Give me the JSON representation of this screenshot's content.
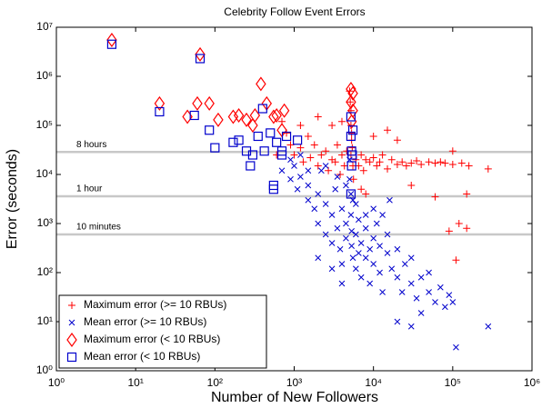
{
  "chart_data": {
    "type": "scatter",
    "title": "Celebrity Follow Event Errors",
    "xlabel": "Number of New Followers",
    "ylabel": "Error (seconds)",
    "xscale": "log",
    "yscale": "log",
    "xlim": [
      1,
      1000000
    ],
    "ylim": [
      1,
      10000000
    ],
    "xticks": [
      {
        "value": 1,
        "label": "10⁰"
      },
      {
        "value": 10,
        "label": "10¹"
      },
      {
        "value": 100,
        "label": "10²"
      },
      {
        "value": 1000,
        "label": "10³"
      },
      {
        "value": 10000,
        "label": "10⁴"
      },
      {
        "value": 100000,
        "label": "10⁵"
      },
      {
        "value": 1000000,
        "label": "10⁶"
      }
    ],
    "yticks": [
      {
        "value": 1,
        "label": "10⁰"
      },
      {
        "value": 10,
        "label": "10¹"
      },
      {
        "value": 100,
        "label": "10²"
      },
      {
        "value": 1000,
        "label": "10³"
      },
      {
        "value": 10000,
        "label": "10⁴"
      },
      {
        "value": 100000,
        "label": "10⁵"
      },
      {
        "value": 1000000,
        "label": "10⁶"
      },
      {
        "value": 10000000,
        "label": "10⁷"
      }
    ],
    "reference_lines": [
      {
        "value": 28800,
        "label": "8 hours"
      },
      {
        "value": 3600,
        "label": "1 hour"
      },
      {
        "value": 600,
        "label": "10 minutes"
      }
    ],
    "reference_color": "#c8c8c8",
    "legend": "lower left",
    "series": [
      {
        "name": "Maximum error (>= 10 RBUs)",
        "color": "#ff0000",
        "marker": "plus",
        "x": [
          700,
          900,
          1000,
          1200,
          1300,
          1500,
          1600,
          1800,
          2000,
          2200,
          2500,
          2700,
          3000,
          3300,
          3500,
          3800,
          4000,
          4300,
          4600,
          5000,
          5100,
          5200,
          5200,
          5300,
          5300,
          5400,
          5200,
          5500,
          5600,
          6000,
          6500,
          7000,
          7500,
          8000,
          9000,
          10000,
          11000,
          12000,
          13000,
          15000,
          17000,
          20000,
          23000,
          26000,
          30000,
          35000,
          40000,
          50000,
          60000,
          70000,
          80000,
          100000,
          130000,
          160000,
          280000,
          100000,
          150000,
          120000,
          90000,
          110000,
          150000,
          60000,
          30000,
          20000,
          15000,
          600,
          2000,
          3000,
          1200,
          800,
          4000,
          10000,
          7000,
          8000
        ],
        "values": [
          120000,
          40000,
          25000,
          35000,
          18000,
          60000,
          22000,
          40000,
          15000,
          25000,
          30000,
          12000,
          20000,
          18000,
          40000,
          10000,
          25000,
          15000,
          30000,
          500000,
          300000,
          200000,
          100000,
          70000,
          50000,
          35000,
          25000,
          15000,
          8000,
          20000,
          15000,
          25000,
          12000,
          20000,
          18000,
          22000,
          15000,
          18000,
          25000,
          13000,
          20000,
          16000,
          18000,
          15000,
          17000,
          19000,
          16000,
          18000,
          17000,
          18000,
          17000,
          16000,
          17000,
          15000,
          13000,
          30000,
          4000,
          1000,
          700,
          180,
          800,
          3500,
          6000,
          50000,
          80000,
          25000,
          150000,
          100000,
          100000,
          70000,
          120000,
          60000,
          5000,
          4000
        ]
      },
      {
        "name": "Mean error (>= 10 RBUs)",
        "color": "#0000cc",
        "marker": "x",
        "x": [
          700,
          900,
          1000,
          1100,
          1200,
          1500,
          1500,
          1800,
          2000,
          2000,
          2200,
          2500,
          2500,
          3000,
          3000,
          3300,
          3500,
          3800,
          4000,
          4000,
          4500,
          4500,
          5000,
          5000,
          5200,
          5200,
          5300,
          5300,
          5500,
          5500,
          6000,
          6000,
          6500,
          6500,
          7000,
          7000,
          8000,
          8000,
          9000,
          9000,
          10000,
          10000,
          11000,
          12000,
          12000,
          13000,
          15000,
          15000,
          17000,
          20000,
          20000,
          23000,
          25000,
          30000,
          30000,
          35000,
          40000,
          40000,
          50000,
          50000,
          60000,
          70000,
          80000,
          90000,
          100000,
          110000,
          280000,
          20000,
          30000,
          10000,
          13000,
          1500,
          900,
          1200,
          2500,
          3500,
          4500,
          8000,
          6000,
          16000,
          2000,
          3000,
          4000
        ],
        "values": [
          12000,
          8000,
          15000,
          5000,
          9000,
          3000,
          6000,
          2000,
          4000,
          1000,
          12000,
          2500,
          600,
          1500,
          400,
          5000,
          800,
          300,
          2000,
          150,
          1000,
          500,
          20000,
          8000,
          4000,
          1500,
          700,
          350,
          200,
          3000,
          120,
          600,
          1200,
          250,
          400,
          80,
          800,
          200,
          60,
          300,
          500,
          150,
          1000,
          100,
          350,
          40,
          250,
          600,
          120,
          80,
          300,
          40,
          150,
          60,
          200,
          30,
          80,
          15,
          40,
          100,
          25,
          50,
          20,
          35,
          25,
          3,
          8,
          10,
          8,
          2000,
          1500,
          12000,
          20000,
          25000,
          15000,
          9000,
          6000,
          1500,
          2500,
          3000,
          200,
          120,
          60
        ]
      },
      {
        "name": "Maximum error (< 10 RBUs)",
        "color": "#ff0000",
        "marker": "diamond",
        "x": [
          5,
          65,
          20,
          60,
          85,
          45,
          110,
          170,
          200,
          250,
          320,
          380,
          450,
          600,
          750,
          5200,
          5200,
          5500,
          5500,
          5300,
          700,
          300,
          550
        ],
        "values": [
          5500000,
          2800000,
          280000,
          280000,
          280000,
          150000,
          130000,
          150000,
          160000,
          130000,
          160000,
          700000,
          280000,
          160000,
          200000,
          550000,
          300000,
          200000,
          450000,
          120000,
          80000,
          100000,
          150000
        ]
      },
      {
        "name": "Mean error (< 10 RBUs)",
        "color": "#0000cc",
        "marker": "square",
        "x": [
          5,
          65,
          20,
          55,
          85,
          100,
          170,
          200,
          250,
          280,
          300,
          350,
          400,
          420,
          500,
          550,
          600,
          700,
          800,
          1100,
          5200,
          5200,
          5300,
          5300,
          5200,
          5500,
          5400,
          550,
          700
        ],
        "values": [
          4500000,
          2300000,
          190000,
          160000,
          80000,
          35000,
          45000,
          50000,
          30000,
          15000,
          25000,
          60000,
          220000,
          30000,
          70000,
          5000,
          45000,
          25000,
          60000,
          50000,
          150000,
          60000,
          30000,
          15000,
          4000,
          80000,
          25000,
          6000,
          30000
        ]
      }
    ]
  }
}
